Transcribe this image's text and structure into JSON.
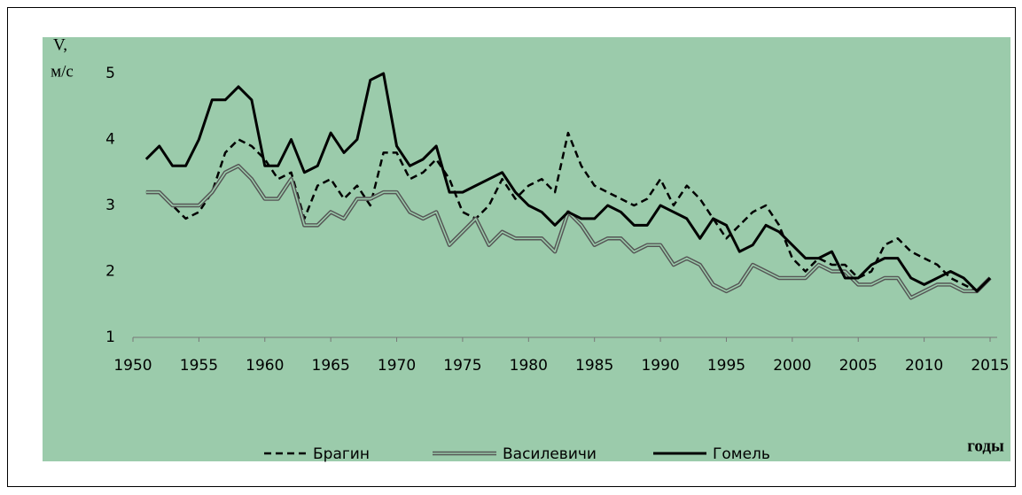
{
  "chart_data": {
    "type": "line",
    "y_label": [
      "V,",
      "м/с"
    ],
    "x_label": "годы",
    "x": [
      1951,
      1952,
      1953,
      1954,
      1955,
      1956,
      1957,
      1958,
      1959,
      1960,
      1961,
      1962,
      1963,
      1964,
      1965,
      1966,
      1967,
      1968,
      1969,
      1970,
      1971,
      1972,
      1973,
      1974,
      1975,
      1976,
      1977,
      1978,
      1979,
      1980,
      1981,
      1982,
      1983,
      1984,
      1985,
      1986,
      1987,
      1988,
      1989,
      1990,
      1991,
      1992,
      1993,
      1994,
      1995,
      1996,
      1997,
      1998,
      1999,
      2000,
      2001,
      2002,
      2003,
      2004,
      2005,
      2006,
      2007,
      2008,
      2009,
      2010,
      2011,
      2012,
      2013,
      2014,
      2015
    ],
    "series": [
      {
        "name": "Брагин",
        "color": "#000000",
        "style": "dashed",
        "values": [
          3.2,
          3.2,
          3.0,
          2.8,
          2.9,
          3.2,
          3.8,
          4.0,
          3.9,
          3.7,
          3.4,
          3.5,
          2.8,
          3.3,
          3.4,
          3.1,
          3.3,
          3.0,
          3.8,
          3.8,
          3.4,
          3.5,
          3.7,
          3.4,
          2.9,
          2.8,
          3.0,
          3.4,
          3.1,
          3.3,
          3.4,
          3.2,
          4.1,
          3.6,
          3.3,
          3.2,
          3.1,
          3.0,
          3.1,
          3.4,
          3.0,
          3.3,
          3.1,
          2.8,
          2.5,
          2.7,
          2.9,
          3.0,
          2.7,
          2.2,
          2.0,
          2.2,
          2.1,
          2.1,
          1.9,
          2.0,
          2.4,
          2.5,
          2.3,
          2.2,
          2.1,
          1.9,
          1.8,
          1.7,
          1.9
        ]
      },
      {
        "name": "Василевичи",
        "color": "#555555",
        "style": "double",
        "values": [
          3.2,
          3.2,
          3.0,
          3.0,
          3.0,
          3.2,
          3.5,
          3.6,
          3.4,
          3.1,
          3.1,
          3.4,
          2.7,
          2.7,
          2.9,
          2.8,
          3.1,
          3.1,
          3.2,
          3.2,
          2.9,
          2.8,
          2.9,
          2.4,
          2.6,
          2.8,
          2.4,
          2.6,
          2.5,
          2.5,
          2.5,
          2.3,
          2.9,
          2.7,
          2.4,
          2.5,
          2.5,
          2.3,
          2.4,
          2.4,
          2.1,
          2.2,
          2.1,
          1.8,
          1.7,
          1.8,
          2.1,
          2.0,
          1.9,
          1.9,
          1.9,
          2.1,
          2.0,
          2.0,
          1.8,
          1.8,
          1.9,
          1.9,
          1.6,
          1.7,
          1.8,
          1.8,
          1.7,
          1.7,
          1.9
        ]
      },
      {
        "name": "Гомель",
        "color": "#000000",
        "style": "solid",
        "values": [
          3.7,
          3.9,
          3.6,
          3.6,
          4.0,
          4.6,
          4.6,
          4.8,
          4.6,
          3.6,
          3.6,
          4.0,
          3.5,
          3.6,
          4.1,
          3.8,
          4.0,
          4.9,
          5.0,
          3.9,
          3.6,
          3.7,
          3.9,
          3.2,
          3.2,
          3.3,
          3.4,
          3.5,
          3.2,
          3.0,
          2.9,
          2.7,
          2.9,
          2.8,
          2.8,
          3.0,
          2.9,
          2.7,
          2.7,
          3.0,
          2.9,
          2.8,
          2.5,
          2.8,
          2.7,
          2.3,
          2.4,
          2.7,
          2.6,
          2.4,
          2.2,
          2.2,
          2.3,
          1.9,
          1.9,
          2.1,
          2.2,
          2.2,
          1.9,
          1.8,
          1.9,
          2.0,
          1.9,
          1.7,
          1.9
        ]
      }
    ],
    "xlim": [
      1950,
      2015
    ],
    "xticks": [
      1950,
      1955,
      1960,
      1965,
      1970,
      1975,
      1980,
      1985,
      1990,
      1995,
      2000,
      2005,
      2010,
      2015
    ],
    "ylim": [
      1,
      5.5
    ],
    "yticks": [
      1,
      2,
      3,
      4,
      5
    ],
    "background": "#9bcbab",
    "legend": "bottom"
  }
}
